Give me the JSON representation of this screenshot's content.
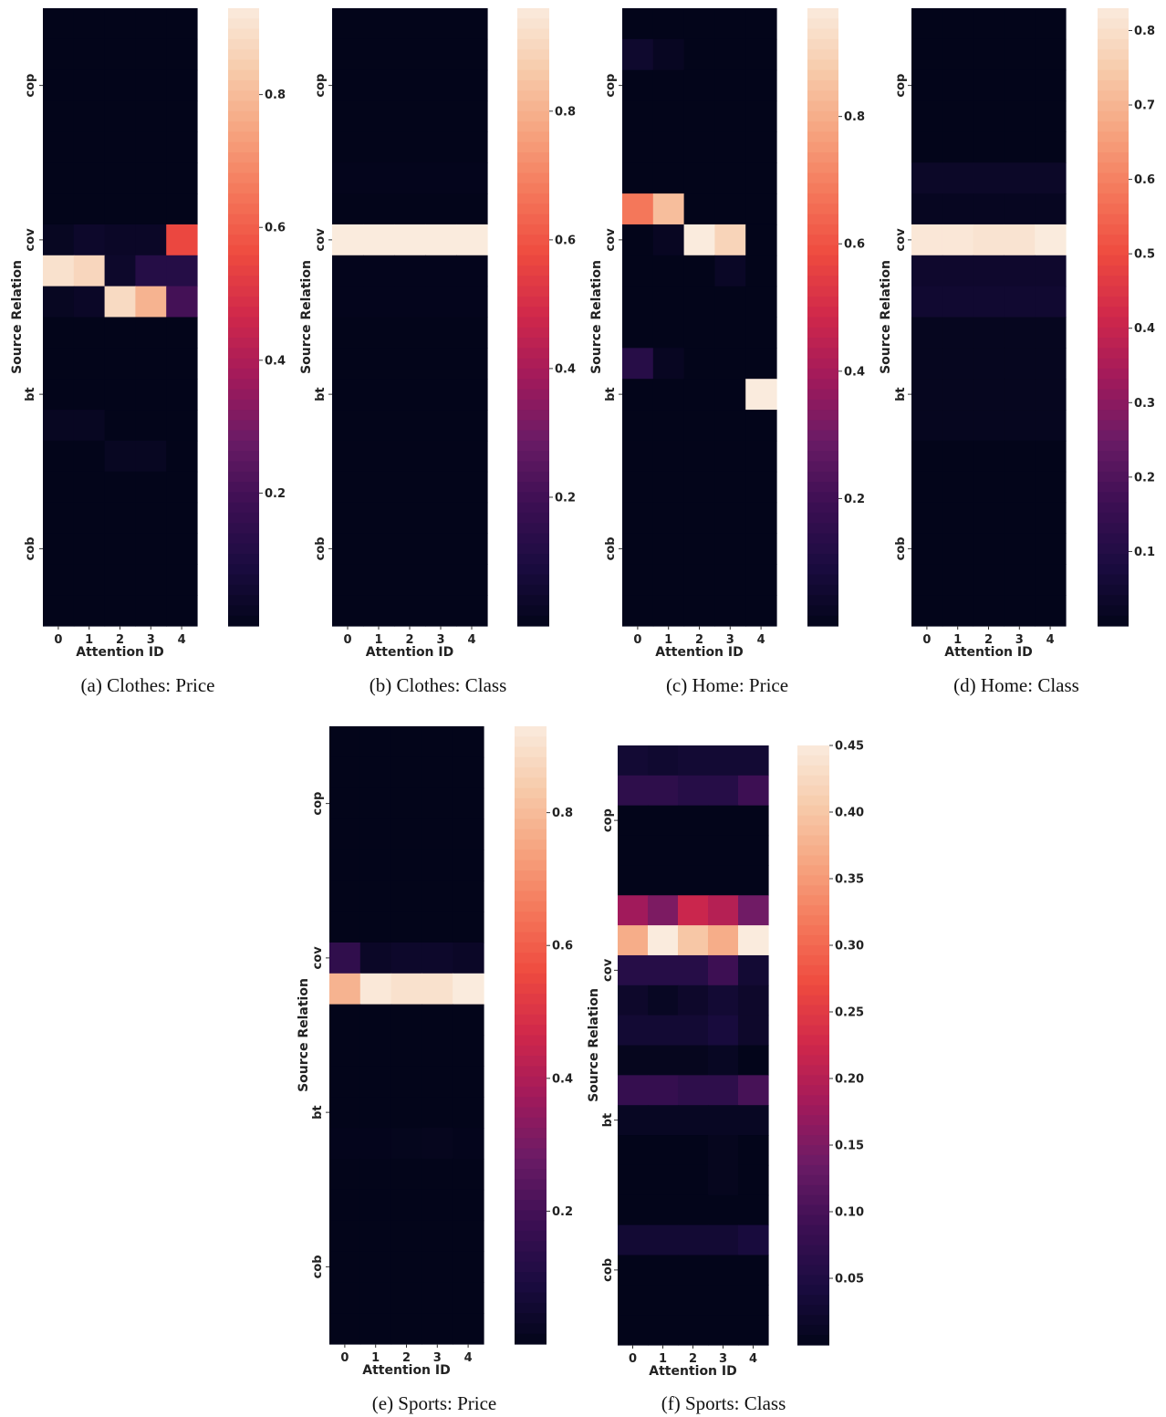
{
  "figure": {
    "colormap": {
      "name": "rocket",
      "stops": [
        "#03051a",
        "#1b0c41",
        "#3d0f53",
        "#6a1b66",
        "#a11a5b",
        "#cf274b",
        "#ee4a3f",
        "#f4775a",
        "#f6a47f",
        "#f7cbab",
        "#faebdd"
      ]
    },
    "rows_per_panel": 20
  },
  "chart_data": [
    {
      "type": "heatmap",
      "caption": "(a) Clothes: Price",
      "xlabel": "Attention ID",
      "ylabel": "Source Relation",
      "x_categories": [
        "0",
        "1",
        "2",
        "3",
        "4"
      ],
      "y_tick_labels": [
        "cop",
        "cov",
        "bt",
        "cob"
      ],
      "y_tick_rows": [
        2.5,
        7.5,
        12.5,
        17.5
      ],
      "colorbar": {
        "vmin": 0.0,
        "vmax": 0.93,
        "ticks": [
          0.2,
          0.4,
          0.6,
          0.8
        ],
        "tick_labels": [
          "0.2",
          "0.4",
          "0.6",
          "0.8"
        ]
      },
      "rows": [
        [
          0.0,
          0.0,
          0.0,
          0.0,
          0.0
        ],
        [
          0.0,
          0.0,
          0.0,
          0.0,
          0.0
        ],
        [
          0.0,
          0.0,
          0.0,
          0.0,
          0.0
        ],
        [
          0.0,
          0.0,
          0.0,
          0.0,
          0.0
        ],
        [
          0.0,
          0.0,
          0.0,
          0.0,
          0.0
        ],
        [
          0.0,
          0.0,
          0.0,
          0.0,
          0.0
        ],
        [
          0.0,
          0.0,
          0.0,
          0.0,
          0.0
        ],
        [
          0.02,
          0.04,
          0.03,
          0.03,
          0.55
        ],
        [
          0.9,
          0.87,
          0.04,
          0.12,
          0.12
        ],
        [
          0.02,
          0.03,
          0.88,
          0.78,
          0.2
        ],
        [
          0.0,
          0.0,
          0.0,
          0.0,
          0.0
        ],
        [
          0.0,
          0.0,
          0.0,
          0.0,
          0.0
        ],
        [
          0.0,
          0.0,
          0.0,
          0.0,
          0.0
        ],
        [
          0.02,
          0.02,
          0.0,
          0.0,
          0.0
        ],
        [
          0.0,
          0.0,
          0.02,
          0.02,
          0.0
        ],
        [
          0.0,
          0.0,
          0.0,
          0.0,
          0.0
        ],
        [
          0.0,
          0.0,
          0.0,
          0.0,
          0.0
        ],
        [
          0.0,
          0.0,
          0.0,
          0.0,
          0.0
        ],
        [
          0.0,
          0.0,
          0.0,
          0.0,
          0.0
        ],
        [
          0.0,
          0.0,
          0.0,
          0.0,
          0.0
        ]
      ]
    },
    {
      "type": "heatmap",
      "caption": "(b) Clothes: Class",
      "xlabel": "Attention ID",
      "ylabel": "Source Relation",
      "x_categories": [
        "0",
        "1",
        "2",
        "3",
        "4"
      ],
      "y_tick_labels": [
        "cop",
        "cov",
        "bt",
        "cob"
      ],
      "y_tick_rows": [
        2.5,
        7.5,
        12.5,
        17.5
      ],
      "colorbar": {
        "vmin": 0.0,
        "vmax": 0.96,
        "ticks": [
          0.2,
          0.4,
          0.6,
          0.8
        ],
        "tick_labels": [
          "0.2",
          "0.4",
          "0.6",
          "0.8"
        ]
      },
      "rows": [
        [
          0.0,
          0.0,
          0.0,
          0.0,
          0.0
        ],
        [
          0.0,
          0.0,
          0.0,
          0.0,
          0.0
        ],
        [
          0.0,
          0.0,
          0.0,
          0.0,
          0.0
        ],
        [
          0.0,
          0.0,
          0.0,
          0.0,
          0.0
        ],
        [
          0.0,
          0.0,
          0.0,
          0.0,
          0.0
        ],
        [
          0.005,
          0.005,
          0.005,
          0.005,
          0.005
        ],
        [
          0.0,
          0.0,
          0.0,
          0.0,
          0.0
        ],
        [
          0.96,
          0.96,
          0.96,
          0.96,
          0.96
        ],
        [
          0.005,
          0.005,
          0.005,
          0.005,
          0.005
        ],
        [
          0.005,
          0.005,
          0.005,
          0.005,
          0.005
        ],
        [
          0.0,
          0.0,
          0.0,
          0.0,
          0.0
        ],
        [
          0.0,
          0.0,
          0.0,
          0.0,
          0.0
        ],
        [
          0.0,
          0.0,
          0.0,
          0.0,
          0.0
        ],
        [
          0.0,
          0.0,
          0.0,
          0.0,
          0.0
        ],
        [
          0.0,
          0.0,
          0.0,
          0.0,
          0.0
        ],
        [
          0.0,
          0.0,
          0.0,
          0.0,
          0.0
        ],
        [
          0.0,
          0.0,
          0.0,
          0.0,
          0.0
        ],
        [
          0.0,
          0.0,
          0.0,
          0.0,
          0.0
        ],
        [
          0.0,
          0.0,
          0.0,
          0.0,
          0.0
        ],
        [
          0.0,
          0.0,
          0.0,
          0.0,
          0.0
        ]
      ]
    },
    {
      "type": "heatmap",
      "caption": "(c) Home: Price",
      "xlabel": "Attention ID",
      "ylabel": "Source Relation",
      "x_categories": [
        "0",
        "1",
        "2",
        "3",
        "4"
      ],
      "y_tick_labels": [
        "cop",
        "cov",
        "bt",
        "cob"
      ],
      "y_tick_rows": [
        2.5,
        7.5,
        12.5,
        17.5
      ],
      "colorbar": {
        "vmin": 0.0,
        "vmax": 0.97,
        "ticks": [
          0.2,
          0.4,
          0.6,
          0.8
        ],
        "tick_labels": [
          "0.2",
          "0.4",
          "0.6",
          "0.8"
        ]
      },
      "rows": [
        [
          0.0,
          0.0,
          0.0,
          0.0,
          0.0
        ],
        [
          0.05,
          0.02,
          0.0,
          0.0,
          0.0
        ],
        [
          0.0,
          0.0,
          0.0,
          0.0,
          0.0
        ],
        [
          0.0,
          0.0,
          0.0,
          0.0,
          0.0
        ],
        [
          0.0,
          0.0,
          0.0,
          0.0,
          0.0
        ],
        [
          0.0,
          0.0,
          0.0,
          0.0,
          0.0
        ],
        [
          0.68,
          0.84,
          0.0,
          0.0,
          0.0
        ],
        [
          0.0,
          0.02,
          0.97,
          0.9,
          0.0
        ],
        [
          0.0,
          0.0,
          0.0,
          0.03,
          0.0
        ],
        [
          0.0,
          0.0,
          0.0,
          0.0,
          0.0
        ],
        [
          0.0,
          0.0,
          0.0,
          0.0,
          0.0
        ],
        [
          0.13,
          0.02,
          0.0,
          0.0,
          0.0
        ],
        [
          0.0,
          0.0,
          0.0,
          0.0,
          0.97
        ],
        [
          0.0,
          0.0,
          0.0,
          0.0,
          0.0
        ],
        [
          0.0,
          0.0,
          0.0,
          0.0,
          0.0
        ],
        [
          0.0,
          0.0,
          0.0,
          0.0,
          0.0
        ],
        [
          0.0,
          0.0,
          0.0,
          0.0,
          0.0
        ],
        [
          0.0,
          0.0,
          0.0,
          0.0,
          0.0
        ],
        [
          0.0,
          0.0,
          0.0,
          0.0,
          0.0
        ],
        [
          0.0,
          0.0,
          0.0,
          0.0,
          0.0
        ]
      ]
    },
    {
      "type": "heatmap",
      "caption": "(d) Home: Class",
      "xlabel": "Attention ID",
      "ylabel": "Source Relation",
      "x_categories": [
        "0",
        "1",
        "2",
        "3",
        "4"
      ],
      "y_tick_labels": [
        "cop",
        "cov",
        "bt",
        "cob"
      ],
      "y_tick_rows": [
        2.5,
        7.5,
        12.5,
        17.5
      ],
      "colorbar": {
        "vmin": 0.0,
        "vmax": 0.83,
        "ticks": [
          0.1,
          0.2,
          0.3,
          0.4,
          0.5,
          0.6,
          0.7,
          0.8
        ],
        "tick_labels": [
          "0.1",
          "0.2",
          "0.3",
          "0.4",
          "0.5",
          "0.6",
          "0.7",
          "0.8"
        ]
      },
      "rows": [
        [
          0.0,
          0.0,
          0.0,
          0.0,
          0.0
        ],
        [
          0.0,
          0.0,
          0.0,
          0.0,
          0.0
        ],
        [
          0.0,
          0.0,
          0.0,
          0.0,
          0.0
        ],
        [
          0.0,
          0.0,
          0.0,
          0.0,
          0.0
        ],
        [
          0.0,
          0.0,
          0.0,
          0.0,
          0.0
        ],
        [
          0.03,
          0.03,
          0.03,
          0.03,
          0.03
        ],
        [
          0.015,
          0.015,
          0.015,
          0.015,
          0.015
        ],
        [
          0.82,
          0.82,
          0.81,
          0.81,
          0.83
        ],
        [
          0.04,
          0.04,
          0.04,
          0.04,
          0.04
        ],
        [
          0.05,
          0.05,
          0.05,
          0.05,
          0.05
        ],
        [
          0.01,
          0.01,
          0.01,
          0.01,
          0.01
        ],
        [
          0.01,
          0.01,
          0.01,
          0.01,
          0.01
        ],
        [
          0.01,
          0.01,
          0.01,
          0.01,
          0.01
        ],
        [
          0.01,
          0.01,
          0.01,
          0.01,
          0.01
        ],
        [
          0.0,
          0.0,
          0.0,
          0.0,
          0.0
        ],
        [
          0.0,
          0.0,
          0.0,
          0.0,
          0.0
        ],
        [
          0.0,
          0.0,
          0.0,
          0.0,
          0.0
        ],
        [
          0.0,
          0.0,
          0.0,
          0.0,
          0.0
        ],
        [
          0.0,
          0.0,
          0.0,
          0.0,
          0.0
        ],
        [
          0.0,
          0.0,
          0.0,
          0.0,
          0.0
        ]
      ]
    },
    {
      "type": "heatmap",
      "caption": "(e) Sports: Price",
      "xlabel": "Attention ID",
      "ylabel": "Source Relation",
      "x_categories": [
        "0",
        "1",
        "2",
        "3",
        "4"
      ],
      "y_tick_labels": [
        "cop",
        "cov",
        "bt",
        "cob"
      ],
      "y_tick_rows": [
        2.5,
        7.5,
        12.5,
        17.5
      ],
      "colorbar": {
        "vmin": 0.0,
        "vmax": 0.93,
        "ticks": [
          0.2,
          0.4,
          0.6,
          0.8
        ],
        "tick_labels": [
          "0.2",
          "0.4",
          "0.6",
          "0.8"
        ]
      },
      "rows": [
        [
          0.0,
          0.0,
          0.0,
          0.0,
          0.0
        ],
        [
          0.0,
          0.0,
          0.0,
          0.0,
          0.0
        ],
        [
          0.0,
          0.0,
          0.0,
          0.0,
          0.0
        ],
        [
          0.0,
          0.0,
          0.0,
          0.0,
          0.0
        ],
        [
          0.0,
          0.0,
          0.0,
          0.0,
          0.0
        ],
        [
          0.0,
          0.0,
          0.0,
          0.0,
          0.0
        ],
        [
          0.0,
          0.0,
          0.0,
          0.0,
          0.0
        ],
        [
          0.15,
          0.03,
          0.04,
          0.04,
          0.03
        ],
        [
          0.78,
          0.92,
          0.9,
          0.9,
          0.93
        ],
        [
          0.0,
          0.0,
          0.0,
          0.0,
          0.0
        ],
        [
          0.0,
          0.0,
          0.0,
          0.0,
          0.0
        ],
        [
          0.0,
          0.0,
          0.0,
          0.0,
          0.0
        ],
        [
          0.0,
          0.0,
          0.0,
          0.0,
          0.0
        ],
        [
          0.005,
          0.005,
          0.008,
          0.01,
          0.005
        ],
        [
          0.0,
          0.0,
          0.0,
          0.0,
          0.0
        ],
        [
          0.0,
          0.0,
          0.0,
          0.0,
          0.0
        ],
        [
          0.0,
          0.0,
          0.0,
          0.0,
          0.0
        ],
        [
          0.0,
          0.0,
          0.0,
          0.0,
          0.0
        ],
        [
          0.0,
          0.0,
          0.0,
          0.0,
          0.0
        ],
        [
          0.0,
          0.0,
          0.0,
          0.0,
          0.0
        ]
      ]
    },
    {
      "type": "heatmap",
      "caption": "(f) Sports: Class",
      "xlabel": "Attention ID",
      "ylabel": "Source Relation",
      "x_categories": [
        "0",
        "1",
        "2",
        "3",
        "4"
      ],
      "y_tick_labels": [
        "cop",
        "cov",
        "bt",
        "cob"
      ],
      "y_tick_rows": [
        2.5,
        7.5,
        12.5,
        17.5
      ],
      "colorbar": {
        "vmin": 0.0,
        "vmax": 0.45,
        "ticks": [
          0.05,
          0.1,
          0.15,
          0.2,
          0.25,
          0.3,
          0.35,
          0.4,
          0.45
        ],
        "tick_labels": [
          "0.05",
          "0.10",
          "0.15",
          "0.20",
          "0.25",
          "0.30",
          "0.35",
          "0.40",
          "0.45"
        ]
      },
      "rows": [
        [
          0.03,
          0.025,
          0.03,
          0.03,
          0.03
        ],
        [
          0.07,
          0.07,
          0.06,
          0.06,
          0.09
        ],
        [
          0.0,
          0.0,
          0.0,
          0.0,
          0.0
        ],
        [
          0.0,
          0.0,
          0.0,
          0.0,
          0.0
        ],
        [
          0.0,
          0.0,
          0.0,
          0.0,
          0.0
        ],
        [
          0.18,
          0.15,
          0.22,
          0.2,
          0.14
        ],
        [
          0.37,
          0.45,
          0.4,
          0.37,
          0.45
        ],
        [
          0.06,
          0.06,
          0.06,
          0.09,
          0.03
        ],
        [
          0.02,
          0.01,
          0.02,
          0.03,
          0.02
        ],
        [
          0.03,
          0.03,
          0.03,
          0.04,
          0.02
        ],
        [
          0.005,
          0.005,
          0.005,
          0.01,
          0.0
        ],
        [
          0.08,
          0.08,
          0.07,
          0.07,
          0.1
        ],
        [
          0.01,
          0.01,
          0.01,
          0.01,
          0.01
        ],
        [
          0.0,
          0.0,
          0.0,
          0.005,
          0.0
        ],
        [
          0.0,
          0.0,
          0.0,
          0.005,
          0.0
        ],
        [
          0.0,
          0.0,
          0.0,
          0.0,
          0.0
        ],
        [
          0.03,
          0.03,
          0.03,
          0.03,
          0.04
        ],
        [
          0.0,
          0.0,
          0.0,
          0.0,
          0.0
        ],
        [
          0.0,
          0.0,
          0.0,
          0.0,
          0.0
        ],
        [
          0.0,
          0.0,
          0.0,
          0.0,
          0.0
        ]
      ]
    }
  ]
}
